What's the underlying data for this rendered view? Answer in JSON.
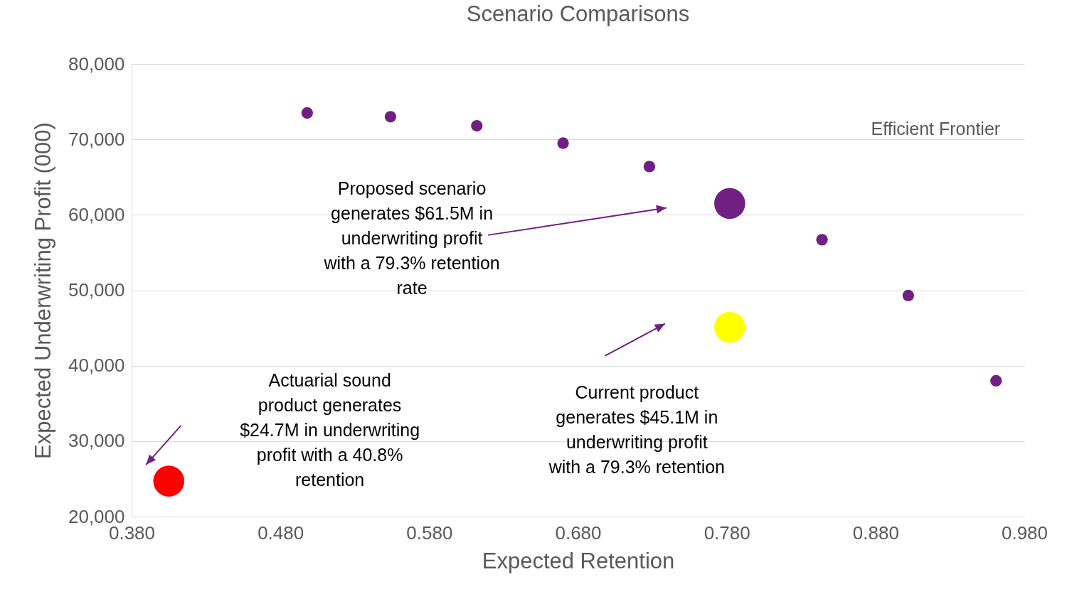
{
  "chart_data": {
    "type": "bubble",
    "title": "Scenario Comparisons",
    "xlabel": "Expected Retention",
    "ylabel": "Expected Underwriting Profit (000)",
    "xlim": [
      0.38,
      0.98
    ],
    "xticks": [
      {
        "value": 0.38,
        "label": "0.380"
      },
      {
        "value": 0.48,
        "label": "0.480"
      },
      {
        "value": 0.58,
        "label": "0.580"
      },
      {
        "value": 0.68,
        "label": "0.680"
      },
      {
        "value": 0.78,
        "label": "0.780"
      },
      {
        "value": 0.88,
        "label": "0.880"
      },
      {
        "value": 0.98,
        "label": "0.980"
      }
    ],
    "ylim": [
      20000,
      80000
    ],
    "yticks": [
      {
        "value": 20000,
        "label": "20,000"
      },
      {
        "value": 30000,
        "label": "30,000"
      },
      {
        "value": 40000,
        "label": "40,000"
      },
      {
        "value": 50000,
        "label": "50,000"
      },
      {
        "value": 60000,
        "label": "60,000"
      },
      {
        "value": 70000,
        "label": "70,000"
      },
      {
        "value": 80000,
        "label": "80,000"
      }
    ],
    "grid": "y",
    "series": [
      {
        "color": "#702082",
        "x": [
          0.498,
          0.554,
          0.612,
          0.67,
          0.728,
          0.844,
          0.902,
          0.961
        ],
        "values": [
          73500,
          73000,
          71800,
          69500,
          66400,
          56700,
          49300,
          38000
        ],
        "sizes": [
          0.14,
          0.14,
          0.14,
          0.14,
          0.14,
          0.14,
          0.14,
          0.14
        ]
      },
      {
        "color": "#702082",
        "x": [
          0.782
        ],
        "values": [
          61500
        ],
        "sizes": [
          1
        ]
      },
      {
        "color": "#ffff00",
        "x": [
          0.782
        ],
        "values": [
          45100
        ],
        "sizes": [
          1
        ]
      },
      {
        "color": "#ff0000",
        "x": [
          0.405
        ],
        "values": [
          24700
        ],
        "sizes": [
          1
        ]
      }
    ],
    "annotations": [
      "Proposed scenario generates $61.5M in underwriting profit with a 79.3% retention rate",
      "Current product generates $45.1M in underwriting profit with a 79.3% retention",
      "Actuarial sound product generates $24.7M in underwriting profit with a 40.8% retention",
      "Efficient Frontier"
    ]
  }
}
